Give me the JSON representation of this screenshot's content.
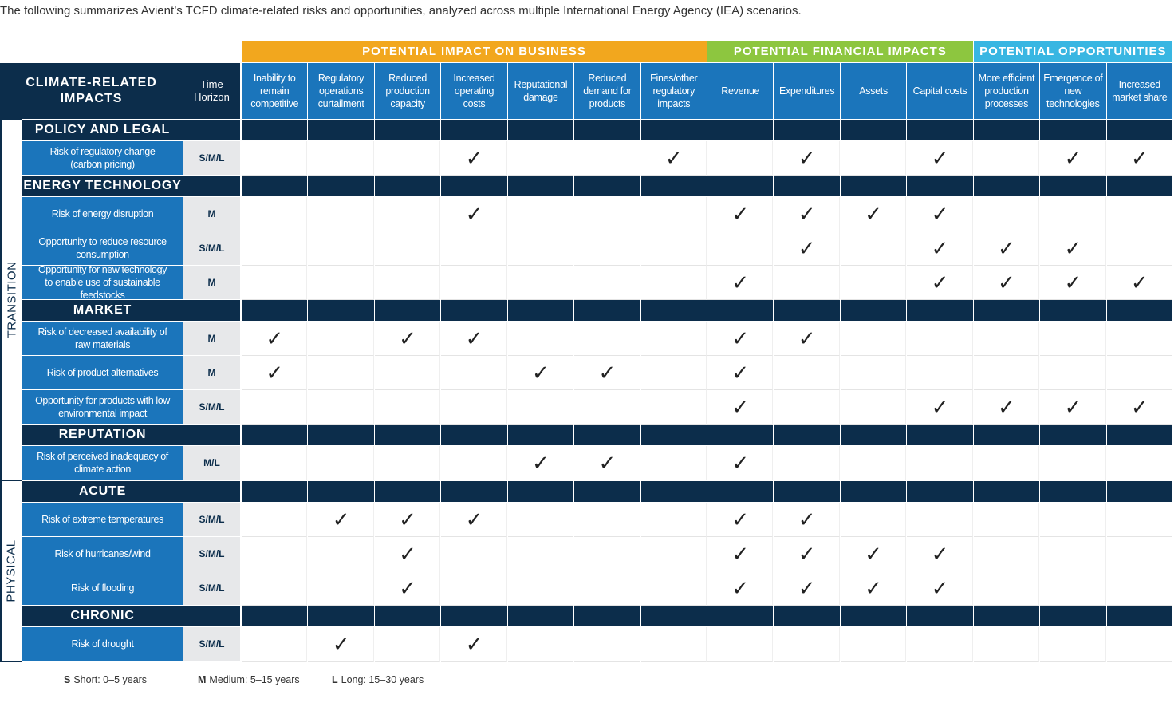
{
  "intro": "The following summarizes Avient’s TCFD climate-related risks and opportunities, analyzed across multiple International Energy Agency (IEA) scenarios.",
  "header": {
    "impacts": "CLIMATE-RELATED IMPACTS",
    "time_horizon": "Time Horizon"
  },
  "groups": [
    {
      "label": "POTENTIAL IMPACT ON BUSINESS",
      "color": "#f2a71e",
      "columns": [
        "Inability to remain competitive",
        "Regulatory operations curtailment",
        "Reduced production capacity",
        "Increased operating costs",
        "Reputational damage",
        "Reduced demand for products",
        "Fines/other regulatory impacts"
      ]
    },
    {
      "label": "POTENTIAL FINANCIAL IMPACTS",
      "color": "#8dc63f",
      "columns": [
        "Revenue",
        "Expenditures",
        "Assets",
        "Capital costs"
      ]
    },
    {
      "label": "POTENTIAL OPPORTUNITIES",
      "color": "#38b6e2",
      "columns": [
        "More efficient production processes",
        "Emergence of new technologies",
        "Increased market share"
      ]
    }
  ],
  "sections": [
    {
      "label": "TRANSITION",
      "categories": [
        {
          "label": "POLICY AND LEGAL",
          "rows": [
            {
              "label": "Risk of regulatory change (carbon pricing)",
              "horizon": "S/M/L",
              "checks": [
                false,
                false,
                false,
                true,
                false,
                false,
                true,
                false,
                true,
                false,
                true,
                false,
                true,
                true
              ]
            }
          ]
        },
        {
          "label": "ENERGY TECHNOLOGY",
          "rows": [
            {
              "label": "Risk of energy disruption",
              "horizon": "M",
              "checks": [
                false,
                false,
                false,
                true,
                false,
                false,
                false,
                true,
                true,
                true,
                true,
                false,
                false,
                false
              ]
            },
            {
              "label": "Opportunity to reduce resource consumption",
              "horizon": "S/M/L",
              "checks": [
                false,
                false,
                false,
                false,
                false,
                false,
                false,
                false,
                true,
                false,
                true,
                true,
                true,
                false
              ]
            },
            {
              "label": "Opportunity for new technology to enable use of sustainable feedstocks",
              "horizon": "M",
              "checks": [
                false,
                false,
                false,
                false,
                false,
                false,
                false,
                true,
                false,
                false,
                true,
                true,
                true,
                true
              ]
            }
          ]
        },
        {
          "label": "MARKET",
          "rows": [
            {
              "label": "Risk of decreased availability of raw materials",
              "horizon": "M",
              "checks": [
                true,
                false,
                true,
                true,
                false,
                false,
                false,
                true,
                true,
                false,
                false,
                false,
                false,
                false
              ]
            },
            {
              "label": "Risk of product alternatives",
              "horizon": "M",
              "checks": [
                true,
                false,
                false,
                false,
                true,
                true,
                false,
                true,
                false,
                false,
                false,
                false,
                false,
                false
              ]
            },
            {
              "label": "Opportunity for products with low environmental impact",
              "horizon": "S/M/L",
              "checks": [
                false,
                false,
                false,
                false,
                false,
                false,
                false,
                true,
                false,
                false,
                true,
                true,
                true,
                true
              ]
            }
          ]
        },
        {
          "label": "REPUTATION",
          "rows": [
            {
              "label": "Risk of perceived inadequacy of climate action",
              "horizon": "M/L",
              "checks": [
                false,
                false,
                false,
                false,
                true,
                true,
                false,
                true,
                false,
                false,
                false,
                false,
                false,
                false
              ]
            }
          ]
        }
      ]
    },
    {
      "label": "PHYSICAL",
      "categories": [
        {
          "label": "ACUTE",
          "rows": [
            {
              "label": "Risk of extreme temperatures",
              "horizon": "S/M/L",
              "checks": [
                false,
                true,
                true,
                true,
                false,
                false,
                false,
                true,
                true,
                false,
                false,
                false,
                false,
                false
              ]
            },
            {
              "label": "Risk of hurricanes/wind",
              "horizon": "S/M/L",
              "checks": [
                false,
                false,
                true,
                false,
                false,
                false,
                false,
                true,
                true,
                true,
                true,
                false,
                false,
                false
              ]
            },
            {
              "label": "Risk of flooding",
              "horizon": "S/M/L",
              "checks": [
                false,
                false,
                true,
                false,
                false,
                false,
                false,
                true,
                true,
                true,
                true,
                false,
                false,
                false
              ]
            }
          ]
        },
        {
          "label": "CHRONIC",
          "rows": [
            {
              "label": "Risk of drought",
              "horizon": "S/M/L",
              "checks": [
                false,
                true,
                false,
                true,
                false,
                false,
                false,
                false,
                false,
                false,
                false,
                false,
                false,
                false
              ]
            }
          ]
        }
      ]
    }
  ],
  "legend": [
    {
      "key": "S",
      "text": "Short: 0–5 years"
    },
    {
      "key": "M",
      "text": "Medium: 5–15 years"
    },
    {
      "key": "L",
      "text": "Long: 15–30 years"
    }
  ]
}
